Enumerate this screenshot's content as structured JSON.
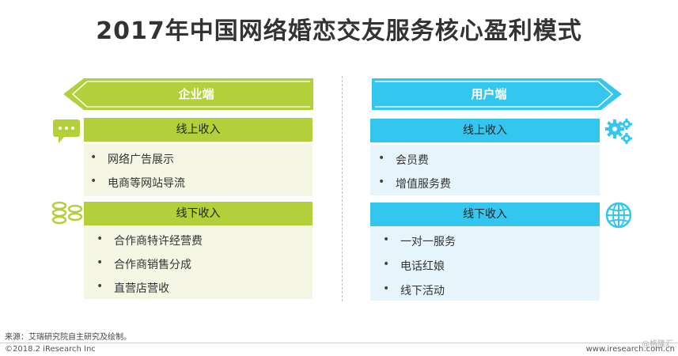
{
  "title": "2017年中国网络婚恋交友服务核心盈利模式",
  "enterprise": {
    "header": "企业端",
    "online": {
      "label": "线上收入",
      "items": [
        "网络广告展示",
        "电商等网站导流"
      ]
    },
    "offline": {
      "label": "线下收入",
      "items": [
        "合作商特许经营费",
        "合作商销售分成",
        "直营店营收"
      ]
    }
  },
  "user": {
    "header": "用户端",
    "online": {
      "label": "线上收入",
      "items": [
        "会员费",
        "增值服务费"
      ]
    },
    "offline": {
      "label": "线下收入",
      "items": [
        "一对一服务",
        "电话红娘",
        "线下活动"
      ]
    }
  },
  "icons": {
    "enterprise_online": "chat-bubble-icon",
    "enterprise_offline": "chain-links-icon",
    "user_online": "gears-icon",
    "user_offline": "globe-icon"
  },
  "colors": {
    "green": "#b3cf3a",
    "blue": "#33c7ef",
    "green_panel": "#f5f7e4",
    "blue_panel": "#e6f5fb"
  },
  "footer": {
    "source": "来源：艾瑞研究院自主研究及绘制。",
    "copyright": "©2018.2 iResearch Inc",
    "site": "www.iresearch.com.cn",
    "watermark": "@格隆汇"
  }
}
